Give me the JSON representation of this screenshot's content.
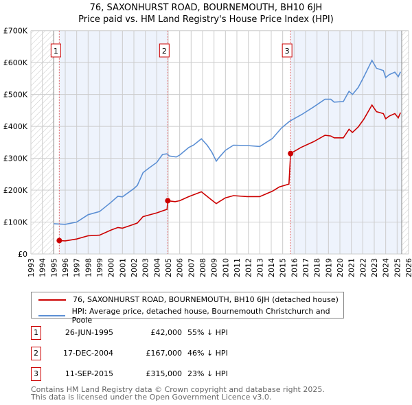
{
  "title": "76, SAXONHURST ROAD, BOURNEMOUTH, BH10 6JH",
  "subtitle": "Price paid vs. HM Land Registry's House Price Index (HPI)",
  "legend": {
    "property": "76, SAXONHURST ROAD, BOURNEMOUTH, BH10 6JH (detached house)",
    "hpi": "HPI: Average price, detached house, Bournemouth Christchurch and Poole"
  },
  "sales": [
    {
      "num": "1",
      "date": "26-JUN-1995",
      "price": "£42,000",
      "hpi": "55% ↓ HPI"
    },
    {
      "num": "2",
      "date": "17-DEC-2004",
      "price": "£167,000",
      "hpi": "46% ↓ HPI"
    },
    {
      "num": "3",
      "date": "11-SEP-2015",
      "price": "£315,000",
      "hpi": "23% ↓ HPI"
    }
  ],
  "footer": {
    "line1": "Contains HM Land Registry data © Crown copyright and database right 2025.",
    "line2": "This data is licensed under the Open Government Licence v3.0."
  },
  "colors": {
    "property": "#cc0000",
    "hpi": "#5b8fd4",
    "shade": "#eef3fc",
    "grid": "#cccccc"
  },
  "chart_data": {
    "type": "line",
    "xlim": [
      1993,
      2026
    ],
    "ylim": [
      0,
      700000
    ],
    "yticks": [
      0,
      100000,
      200000,
      300000,
      400000,
      500000,
      600000,
      700000
    ],
    "ytick_labels": [
      "£0",
      "£100K",
      "£200K",
      "£300K",
      "£400K",
      "£500K",
      "£600K",
      "£700K"
    ],
    "xticks": [
      1993,
      1994,
      1995,
      1996,
      1997,
      1998,
      1999,
      2000,
      2001,
      2002,
      2003,
      2004,
      2005,
      2006,
      2007,
      2008,
      2009,
      2010,
      2011,
      2012,
      2013,
      2014,
      2015,
      2016,
      2017,
      2018,
      2019,
      2020,
      2021,
      2022,
      2023,
      2024,
      2025,
      2026
    ],
    "grid": true,
    "legend_position": "below",
    "sale_markers": [
      {
        "label": "1",
        "x": 1995.48,
        "y": 42000
      },
      {
        "label": "2",
        "x": 2004.96,
        "y": 167000
      },
      {
        "label": "3",
        "x": 2015.69,
        "y": 315000
      }
    ],
    "shaded_ranges": [
      [
        1995.48,
        2004.96
      ],
      [
        2015.69,
        2025.4
      ]
    ],
    "hatched_ranges": [
      [
        1993,
        1995
      ],
      [
        2025.4,
        2026
      ]
    ],
    "series": [
      {
        "name": "76, SAXONHURST ROAD, BOURNEMOUTH, BH10 6JH (detached house)",
        "x": [
          1995.48,
          1996,
          1997,
          1998,
          1999,
          2000,
          2000.6,
          2001,
          2002,
          2002.3,
          2002.8,
          2004,
          2004.9,
          2004.96,
          2005.6,
          2006,
          2006.8,
          2007.9,
          2008.7,
          2009.2,
          2009.5,
          2010,
          2010.7,
          2011.9,
          2013,
          2014.1,
          2014.7,
          2015.55,
          2015.69,
          2016.6,
          2017.7,
          2018.7,
          2019.2,
          2019.5,
          2020.3,
          2020.8,
          2021.1,
          2021.6,
          2022.1,
          2022.8,
          2023.2,
          2023.8,
          2024.0,
          2024.3,
          2024.8,
          2025.1,
          2025.3
        ],
        "y": [
          42000,
          41000,
          47000,
          57000,
          59000,
          75000,
          83000,
          81000,
          93000,
          97000,
          117000,
          129000,
          140000,
          167000,
          164000,
          167000,
          180000,
          195000,
          172000,
          158000,
          165000,
          176000,
          183000,
          180000,
          180000,
          197000,
          210000,
          219000,
          315000,
          334000,
          352000,
          372000,
          370000,
          364000,
          364000,
          391000,
          381000,
          398000,
          423000,
          467000,
          446000,
          440000,
          424000,
          432000,
          440000,
          427000,
          443000
        ]
      },
      {
        "name": "HPI: Average price, detached house, Bournemouth Christchurch and Poole",
        "x": [
          1995,
          1996,
          1997,
          1998,
          1999,
          2000,
          2000.6,
          2001,
          2002,
          2002.3,
          2002.8,
          2003.3,
          2004,
          2004.5,
          2004.9,
          2005.1,
          2005.7,
          2006,
          2006.8,
          2007.2,
          2007.9,
          2008.4,
          2008.8,
          2009.2,
          2009.5,
          2010,
          2010.7,
          2011.9,
          2013,
          2014.1,
          2014.9,
          2015.6,
          2016.7,
          2017.7,
          2018.7,
          2019.2,
          2019.5,
          2020.3,
          2020.8,
          2021.1,
          2021.6,
          2022.1,
          2022.8,
          2023.2,
          2023.8,
          2024.0,
          2024.3,
          2024.8,
          2025.1,
          2025.3
        ],
        "y": [
          95000,
          93000,
          100000,
          123000,
          133000,
          162000,
          181000,
          179000,
          205000,
          215000,
          255000,
          269000,
          287000,
          312000,
          314000,
          307000,
          304000,
          310000,
          334000,
          341000,
          361000,
          341000,
          320000,
          291000,
          305000,
          325000,
          341000,
          340000,
          337000,
          362000,
          395000,
          416000,
          438000,
          461000,
          485000,
          485000,
          476000,
          478000,
          510000,
          500000,
          522000,
          556000,
          607000,
          582000,
          575000,
          553000,
          562000,
          570000,
          556000,
          571000
        ]
      }
    ]
  }
}
